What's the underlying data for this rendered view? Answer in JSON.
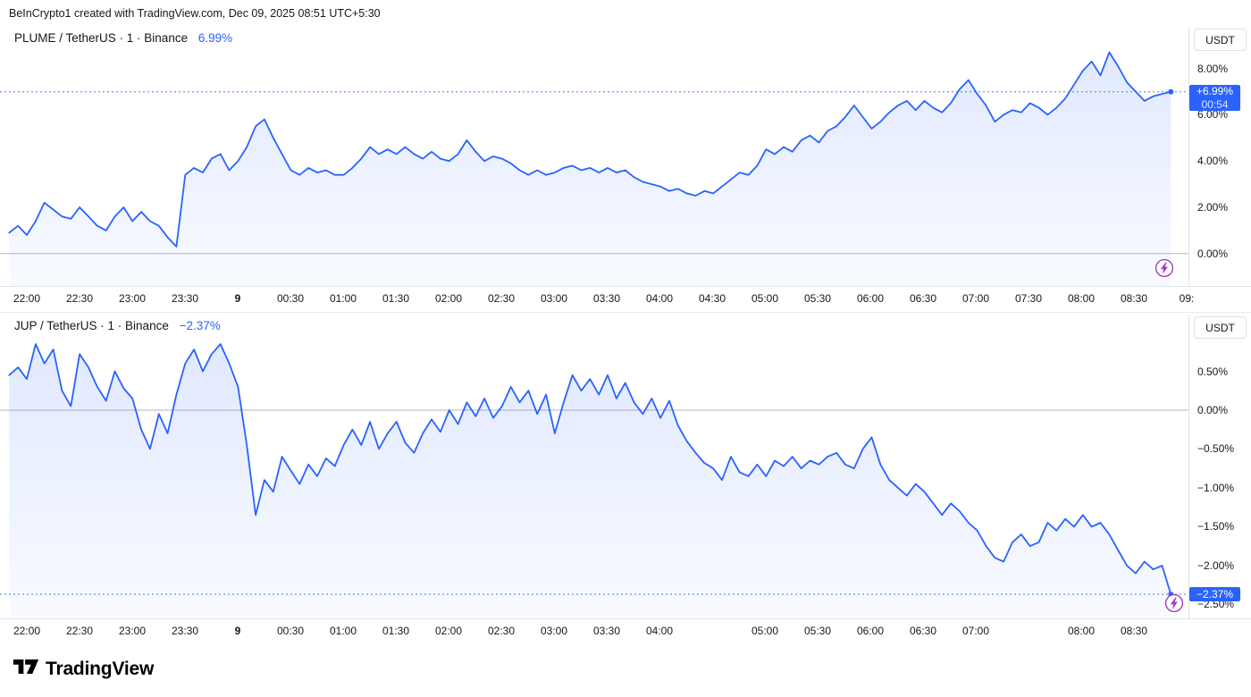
{
  "attribution": "BeInCrypto1 created with TradingView.com, Dec 09, 2025 08:51 UTC+5:30",
  "footer": {
    "brand": "TradingView"
  },
  "colors": {
    "accent": "#2962FF",
    "axis_text": "#131722",
    "grid_border": "#dfe2ea",
    "zero_line": "#b2b5be",
    "badge_bg": "#2962FF",
    "bolt_icon": "#a43bc2"
  },
  "chart_data": [
    {
      "type": "area",
      "symbol": "PLUME/TetherUS",
      "interval": "1",
      "exchange": "Binance",
      "title": "PLUME / TetherUS · 1 · Binance",
      "change_label": "6.99%",
      "unit": "USDT",
      "badge_price": "+6.99%",
      "badge_countdown": "00:54",
      "last_value": 6.99,
      "zero_line": 0,
      "line_color": "#2962FF",
      "xlabel": "time",
      "ylabel": "change %",
      "x_unit": "minutes from 22:00",
      "x_range": [
        -10,
        651
      ],
      "ylim": [
        -1.4,
        9.8
      ],
      "yticks": [
        {
          "v": 8,
          "label": "8.00%"
        },
        {
          "v": 6,
          "label": "6.00%"
        },
        {
          "v": 4,
          "label": "4.00%"
        },
        {
          "v": 2,
          "label": "2.00%"
        },
        {
          "v": 0,
          "label": "0.00%"
        }
      ],
      "xticks": [
        {
          "t": 0,
          "label": "22:00"
        },
        {
          "t": 30,
          "label": "22:30"
        },
        {
          "t": 60,
          "label": "23:00"
        },
        {
          "t": 90,
          "label": "23:30"
        },
        {
          "t": 120,
          "label": "9",
          "bold": true
        },
        {
          "t": 150,
          "label": "00:30"
        },
        {
          "t": 180,
          "label": "01:00"
        },
        {
          "t": 210,
          "label": "01:30"
        },
        {
          "t": 240,
          "label": "02:00"
        },
        {
          "t": 270,
          "label": "02:30"
        },
        {
          "t": 300,
          "label": "03:00"
        },
        {
          "t": 330,
          "label": "03:30"
        },
        {
          "t": 360,
          "label": "04:00"
        },
        {
          "t": 390,
          "label": "04:30"
        },
        {
          "t": 420,
          "label": "05:00"
        },
        {
          "t": 450,
          "label": "05:30"
        },
        {
          "t": 480,
          "label": "06:00"
        },
        {
          "t": 510,
          "label": "06:30"
        },
        {
          "t": 540,
          "label": "07:00"
        },
        {
          "t": 570,
          "label": "07:30"
        },
        {
          "t": 600,
          "label": "08:00"
        },
        {
          "t": 630,
          "label": "08:30"
        },
        {
          "t": 660,
          "label": "09:"
        }
      ],
      "values": [
        0.9,
        1.2,
        0.8,
        1.4,
        2.2,
        1.9,
        1.6,
        1.5,
        2.0,
        1.6,
        1.2,
        1.0,
        1.6,
        2.0,
        1.4,
        1.8,
        1.4,
        1.2,
        0.7,
        0.3,
        3.4,
        3.7,
        3.5,
        4.1,
        4.3,
        3.6,
        4.0,
        4.6,
        5.5,
        5.8,
        5.0,
        4.3,
        3.6,
        3.4,
        3.7,
        3.5,
        3.6,
        3.4,
        3.4,
        3.7,
        4.1,
        4.6,
        4.3,
        4.5,
        4.3,
        4.6,
        4.3,
        4.1,
        4.4,
        4.1,
        4.0,
        4.3,
        4.9,
        4.4,
        4.0,
        4.2,
        4.1,
        3.9,
        3.6,
        3.4,
        3.6,
        3.4,
        3.5,
        3.7,
        3.8,
        3.6,
        3.7,
        3.5,
        3.7,
        3.5,
        3.6,
        3.3,
        3.1,
        3.0,
        2.9,
        2.7,
        2.8,
        2.6,
        2.5,
        2.7,
        2.6,
        2.9,
        3.2,
        3.5,
        3.4,
        3.8,
        4.5,
        4.3,
        4.6,
        4.4,
        4.9,
        5.1,
        4.8,
        5.3,
        5.5,
        5.9,
        6.4,
        5.9,
        5.4,
        5.7,
        6.1,
        6.4,
        6.6,
        6.2,
        6.6,
        6.3,
        6.1,
        6.5,
        7.1,
        7.5,
        6.9,
        6.4,
        5.7,
        6.0,
        6.2,
        6.1,
        6.5,
        6.3,
        6.0,
        6.3,
        6.7,
        7.3,
        7.9,
        8.3,
        7.7,
        8.7,
        8.1,
        7.4,
        7.0,
        6.6,
        6.8,
        6.9,
        6.99
      ]
    },
    {
      "type": "area",
      "symbol": "JUP/TetherUS",
      "interval": "1",
      "exchange": "Binance",
      "title": "JUP / TetherUS · 1 · Binance",
      "change_label": "−2.37%",
      "unit": "USDT",
      "badge_price": "−2.37%",
      "last_value": -2.37,
      "zero_line": 0,
      "line_color": "#2962FF",
      "xlabel": "time",
      "ylabel": "change %",
      "x_unit": "minutes from 22:00",
      "x_range": [
        -10,
        651
      ],
      "ylim": [
        -2.68,
        1.23
      ],
      "yticks": [
        {
          "v": 0.5,
          "label": "0.50%"
        },
        {
          "v": 0,
          "label": "0.00%"
        },
        {
          "v": -0.5,
          "label": "−0.50%"
        },
        {
          "v": -1,
          "label": "−1.00%"
        },
        {
          "v": -1.5,
          "label": "−1.50%"
        },
        {
          "v": -2,
          "label": "−2.00%"
        },
        {
          "v": -2.5,
          "label": "−2.50%"
        }
      ],
      "xticks": [
        {
          "t": 0,
          "label": "22:00"
        },
        {
          "t": 30,
          "label": "22:30"
        },
        {
          "t": 60,
          "label": "23:00"
        },
        {
          "t": 90,
          "label": "23:30"
        },
        {
          "t": 120,
          "label": "9",
          "bold": true
        },
        {
          "t": 150,
          "label": "00:30"
        },
        {
          "t": 180,
          "label": "01:00"
        },
        {
          "t": 210,
          "label": "01:30"
        },
        {
          "t": 240,
          "label": "02:00"
        },
        {
          "t": 270,
          "label": "02:30"
        },
        {
          "t": 300,
          "label": "03:00"
        },
        {
          "t": 330,
          "label": "03:30"
        },
        {
          "t": 360,
          "label": "04:00"
        },
        {
          "t": 420,
          "label": "05:00"
        },
        {
          "t": 450,
          "label": "05:30"
        },
        {
          "t": 480,
          "label": "06:00"
        },
        {
          "t": 510,
          "label": "06:30"
        },
        {
          "t": 540,
          "label": "07:00"
        },
        {
          "t": 600,
          "label": "08:00"
        },
        {
          "t": 630,
          "label": "08:30"
        }
      ],
      "values": [
        0.45,
        0.55,
        0.4,
        0.85,
        0.6,
        0.78,
        0.25,
        0.05,
        0.72,
        0.55,
        0.3,
        0.12,
        0.5,
        0.28,
        0.15,
        -0.25,
        -0.5,
        -0.05,
        -0.3,
        0.2,
        0.6,
        0.78,
        0.5,
        0.72,
        0.85,
        0.6,
        0.3,
        -0.45,
        -1.35,
        -0.9,
        -1.05,
        -0.6,
        -0.78,
        -0.95,
        -0.7,
        -0.85,
        -0.62,
        -0.72,
        -0.45,
        -0.25,
        -0.45,
        -0.15,
        -0.5,
        -0.3,
        -0.15,
        -0.42,
        -0.55,
        -0.3,
        -0.12,
        -0.28,
        0.0,
        -0.18,
        0.1,
        -0.08,
        0.15,
        -0.1,
        0.05,
        0.3,
        0.1,
        0.25,
        -0.05,
        0.2,
        -0.3,
        0.1,
        0.45,
        0.25,
        0.4,
        0.2,
        0.45,
        0.15,
        0.35,
        0.1,
        -0.05,
        0.15,
        -0.1,
        0.12,
        -0.2,
        -0.4,
        -0.55,
        -0.68,
        -0.75,
        -0.9,
        -0.6,
        -0.8,
        -0.85,
        -0.7,
        -0.85,
        -0.65,
        -0.72,
        -0.6,
        -0.75,
        -0.65,
        -0.7,
        -0.6,
        -0.55,
        -0.7,
        -0.75,
        -0.5,
        -0.35,
        -0.7,
        -0.9,
        -1.0,
        -1.1,
        -0.95,
        -1.05,
        -1.2,
        -1.35,
        -1.2,
        -1.3,
        -1.45,
        -1.55,
        -1.75,
        -1.9,
        -1.95,
        -1.7,
        -1.6,
        -1.75,
        -1.7,
        -1.45,
        -1.55,
        -1.4,
        -1.5,
        -1.35,
        -1.5,
        -1.45,
        -1.6,
        -1.8,
        -2.0,
        -2.1,
        -1.95,
        -2.05,
        -2.0,
        -2.37
      ]
    }
  ]
}
